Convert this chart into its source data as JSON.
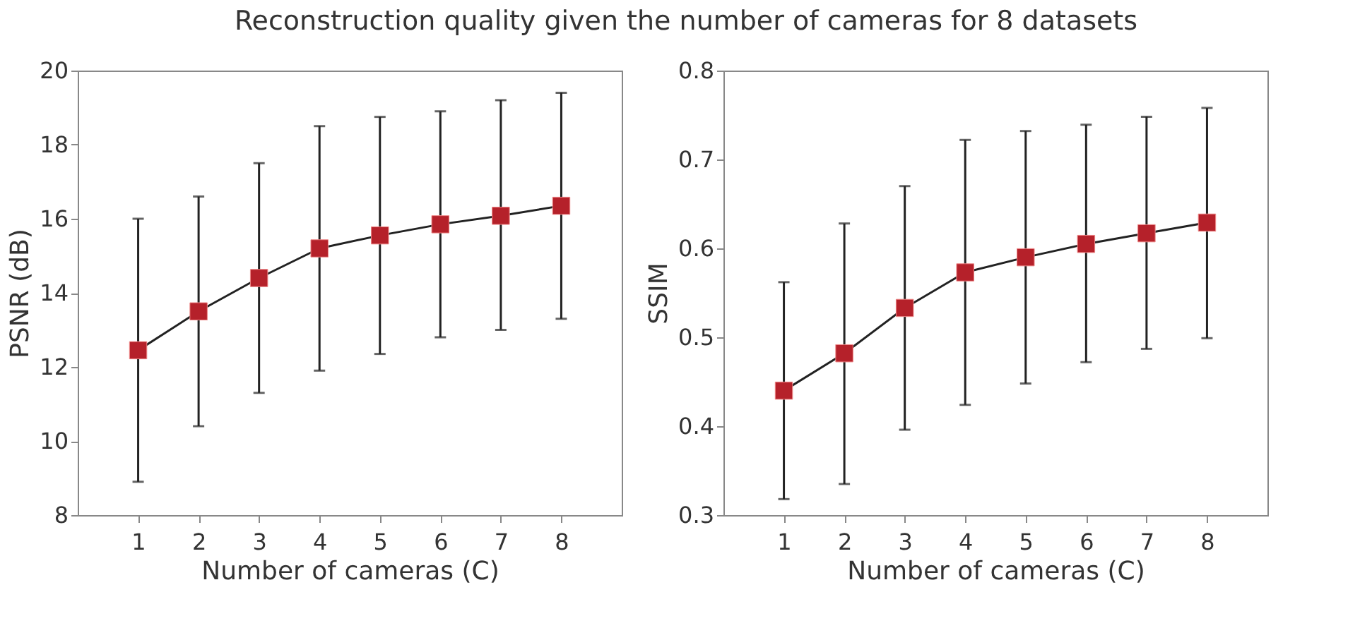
{
  "chart_data": [
    {
      "type": "line",
      "title": "Reconstruction quality given the number of cameras for 8 datasets",
      "xlabel": "Number of cameras (C)",
      "ylabel": "PSNR (dB)",
      "x": [
        1,
        2,
        3,
        4,
        5,
        6,
        7,
        8
      ],
      "series": [
        {
          "color": "#b5212a",
          "values": [
            12.45,
            13.5,
            14.4,
            15.2,
            15.55,
            15.85,
            16.08,
            16.35
          ],
          "errors": [
            [
              8.9,
              16.0
            ],
            [
              10.4,
              16.6
            ],
            [
              11.3,
              17.5
            ],
            [
              11.9,
              18.5
            ],
            [
              12.35,
              18.75
            ],
            [
              12.8,
              18.9
            ],
            [
              13.0,
              19.2
            ],
            [
              13.3,
              19.4
            ]
          ]
        }
      ],
      "xlim": [
        0,
        9
      ],
      "xticks": [
        1,
        2,
        3,
        4,
        5,
        6,
        7,
        8
      ],
      "ylim": [
        8,
        20
      ],
      "yticks": [
        8,
        10,
        12,
        14,
        16,
        18,
        20
      ],
      "marker": "square",
      "line_style": "solid"
    },
    {
      "type": "line",
      "xlabel": "Number of cameras (C)",
      "ylabel": "SSIM",
      "x": [
        1,
        2,
        3,
        4,
        5,
        6,
        7,
        8
      ],
      "series": [
        {
          "color": "#b5212a",
          "values": [
            0.44,
            0.482,
            0.533,
            0.573,
            0.59,
            0.605,
            0.617,
            0.629
          ],
          "errors": [
            [
              0.318,
              0.562
            ],
            [
              0.335,
              0.628
            ],
            [
              0.396,
              0.67
            ],
            [
              0.424,
              0.722
            ],
            [
              0.448,
              0.732
            ],
            [
              0.472,
              0.739
            ],
            [
              0.487,
              0.748
            ],
            [
              0.499,
              0.758
            ]
          ]
        }
      ],
      "xlim": [
        0,
        9
      ],
      "xticks": [
        1,
        2,
        3,
        4,
        5,
        6,
        7,
        8
      ],
      "ylim": [
        0.3,
        0.8
      ],
      "yticks": [
        0.3,
        0.4,
        0.5,
        0.6,
        0.7,
        0.8
      ],
      "marker": "square",
      "line_style": "solid"
    }
  ]
}
